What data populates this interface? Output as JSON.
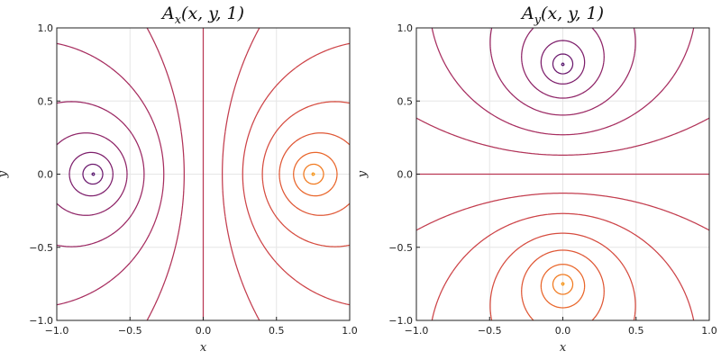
{
  "chart_data": [
    {
      "type": "contour",
      "title": {
        "base": "A",
        "sub": "x",
        "args": "(x, y, 1)"
      },
      "xlabel": "x",
      "ylabel": "y",
      "xlim": [
        -1.0,
        1.0
      ],
      "ylim": [
        -1.0,
        1.0
      ],
      "x_ticks": [
        -1.0,
        -0.5,
        0.0,
        0.5,
        1.0
      ],
      "y_ticks": [
        -1.0,
        -0.5,
        0.0,
        0.5,
        1.0
      ],
      "x_tick_labels": [
        "−1.0",
        "−0.5",
        "0.0",
        "0.5",
        "1.0"
      ],
      "y_tick_labels": [
        "−1.0",
        "−0.5",
        "0.0",
        "0.5",
        "1.0"
      ],
      "grid": true,
      "colormap": "inferno",
      "field_orientation": "x",
      "source_centers": [
        [
          -0.75,
          0.0
        ],
        [
          0.75,
          0.0
        ]
      ],
      "levels": [
        -7.5,
        -6.0,
        -4.8,
        -3.8,
        -3.0,
        -2.3,
        -1.7,
        -1.2,
        -0.75,
        -0.35,
        0.0,
        0.35,
        0.75,
        1.2,
        1.7,
        2.3,
        3.0,
        3.8,
        4.8,
        6.0,
        7.5
      ]
    },
    {
      "type": "contour",
      "title": {
        "base": "A",
        "sub": "y",
        "args": "(x, y, 1)"
      },
      "xlabel": "x",
      "ylabel": "y",
      "xlim": [
        -1.0,
        1.0
      ],
      "ylim": [
        -1.0,
        1.0
      ],
      "x_ticks": [
        -1.0,
        -0.5,
        0.0,
        0.5,
        1.0
      ],
      "y_ticks": [
        -1.0,
        -0.5,
        0.0,
        0.5,
        1.0
      ],
      "x_tick_labels": [
        "−1.0",
        "−0.5",
        "0.0",
        "0.5",
        "1.0"
      ],
      "y_tick_labels": [
        "−1.0",
        "−0.5",
        "0.0",
        "0.5",
        "1.0"
      ],
      "grid": true,
      "colormap": "inferno",
      "field_orientation": "y",
      "source_centers": [
        [
          0.0,
          0.75
        ],
        [
          0.0,
          -0.75
        ]
      ],
      "levels": [
        -7.5,
        -6.0,
        -4.8,
        -3.8,
        -3.0,
        -2.3,
        -1.7,
        -1.2,
        -0.75,
        -0.35,
        0.0,
        0.35,
        0.75,
        1.2,
        1.7,
        2.3,
        3.0,
        3.8,
        4.8,
        6.0,
        7.5
      ]
    }
  ]
}
